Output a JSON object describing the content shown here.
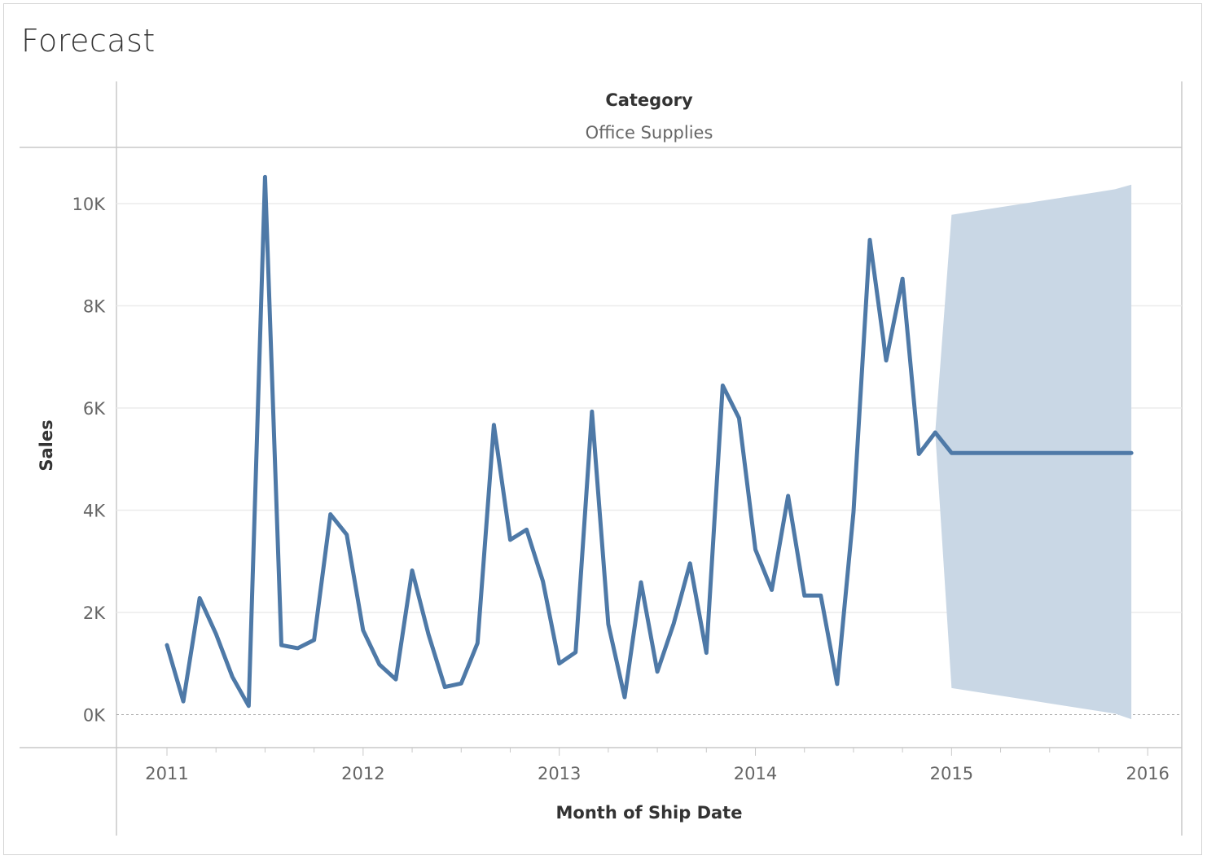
{
  "title": "Forecast",
  "chart_data": {
    "type": "line",
    "title": "Forecast",
    "column_header_title": "Category",
    "column_header_value": "Office Supplies",
    "xlabel": "Month of Ship Date",
    "ylabel": "Sales",
    "x_ticks": [
      "2011",
      "2012",
      "2013",
      "2014",
      "2015",
      "2016"
    ],
    "y_ticks": [
      "0K",
      "2K",
      "4K",
      "6K",
      "8K",
      "10K"
    ],
    "ylim": [
      -600,
      11000
    ],
    "grid": true,
    "colors": {
      "line": "#4e79a7",
      "band": "#c9d7e5",
      "grid": "#ececec",
      "zero_line": "#aaaaaa"
    },
    "series": [
      {
        "kind": "actual",
        "x": [
          "2011-01",
          "2011-02",
          "2011-03",
          "2011-04",
          "2011-05",
          "2011-06",
          "2011-07",
          "2011-08",
          "2011-09",
          "2011-10",
          "2011-11",
          "2011-12",
          "2012-01",
          "2012-02",
          "2012-03",
          "2012-04",
          "2012-05",
          "2012-06",
          "2012-07",
          "2012-08",
          "2012-09",
          "2012-10",
          "2012-11",
          "2012-12",
          "2013-01",
          "2013-02",
          "2013-03",
          "2013-04",
          "2013-05",
          "2013-06",
          "2013-07",
          "2013-08",
          "2013-09",
          "2013-10",
          "2013-11",
          "2013-12",
          "2014-01",
          "2014-02",
          "2014-03",
          "2014-04",
          "2014-05",
          "2014-06",
          "2014-07",
          "2014-08",
          "2014-09",
          "2014-10",
          "2014-11",
          "2014-12"
        ],
        "values": [
          1360,
          260,
          2280,
          1580,
          740,
          170,
          10520,
          1360,
          1300,
          1460,
          3920,
          3520,
          1650,
          980,
          690,
          2820,
          1570,
          540,
          610,
          1400,
          5670,
          3420,
          3620,
          2610,
          1000,
          1220,
          5930,
          1770,
          340,
          2590,
          840,
          1780,
          2960,
          1210,
          6440,
          5800,
          3230,
          2440,
          4280,
          2330,
          2330,
          600,
          3960,
          9290,
          6930,
          8530,
          5100,
          5520
        ]
      },
      {
        "kind": "forecast",
        "x": [
          "2014-12",
          "2015-01",
          "2015-02",
          "2015-03",
          "2015-04",
          "2015-05",
          "2015-06",
          "2015-07",
          "2015-08",
          "2015-09",
          "2015-10",
          "2015-11",
          "2015-12"
        ],
        "values": [
          5520,
          5120,
          5120,
          5120,
          5120,
          5120,
          5120,
          5120,
          5120,
          5120,
          5120,
          5120,
          5120
        ],
        "band_upper": [
          null,
          9780,
          9830,
          9880,
          9930,
          9980,
          10030,
          10080,
          10130,
          10180,
          10230,
          10280,
          10370
        ],
        "band_lower": [
          null,
          520,
          470,
          420,
          370,
          320,
          270,
          220,
          170,
          120,
          70,
          20,
          -90
        ]
      }
    ]
  }
}
